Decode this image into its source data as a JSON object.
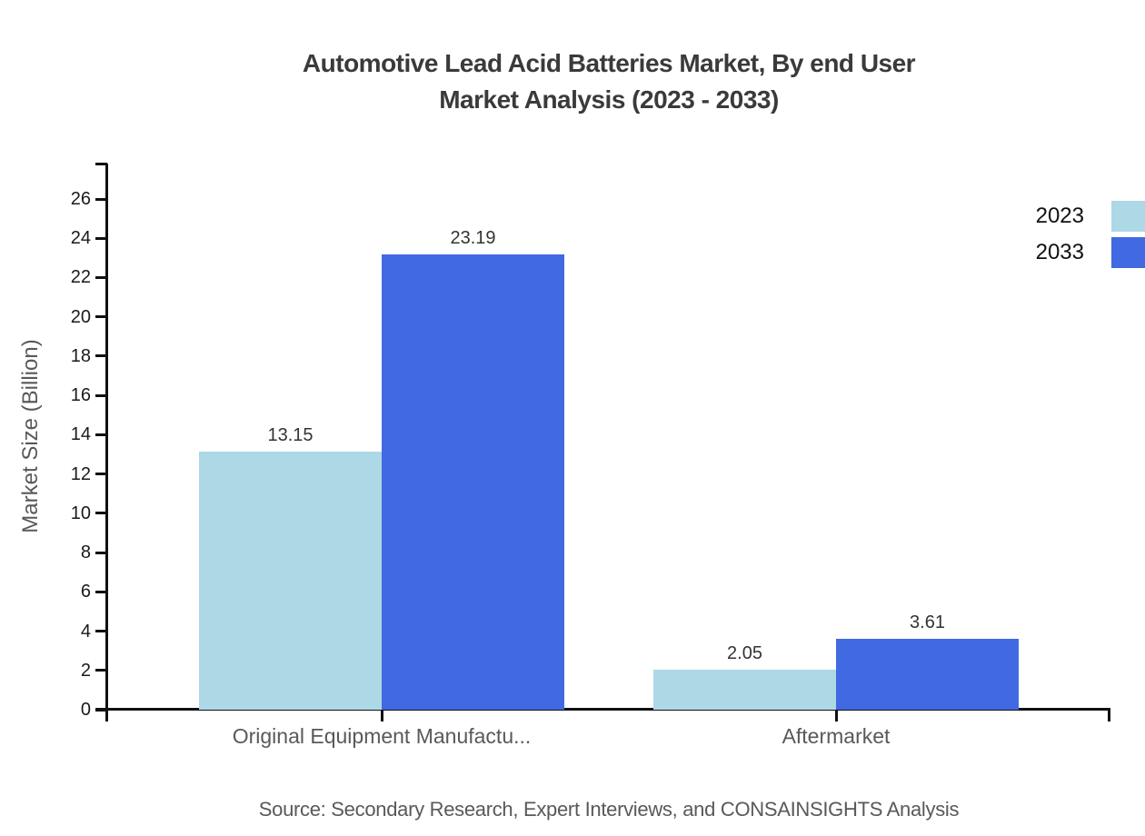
{
  "page": {
    "background": "#ffffff"
  },
  "title": {
    "line1": "Automotive Lead Acid Batteries Market, By end User",
    "line2": "Market Analysis (2023 - 2033)"
  },
  "legend": {
    "position": "top-right",
    "items": [
      {
        "label": "2023",
        "color": "#ADD8E6"
      },
      {
        "label": "2033",
        "color": "#4169E1"
      }
    ]
  },
  "chart_data": {
    "type": "bar",
    "title": "Automotive Lead Acid Batteries Market, By end User Market Analysis (2023 - 2033)",
    "categories": [
      "Original Equipment Manufactu...",
      "Aftermarket"
    ],
    "series": [
      {
        "name": "2023",
        "color": "#ADD8E6",
        "values": [
          13.15,
          2.05
        ]
      },
      {
        "name": "2033",
        "color": "#4169E1",
        "values": [
          23.19,
          3.61
        ]
      }
    ],
    "value_labels": [
      "13.15",
      "23.19",
      "2.05",
      "3.61"
    ],
    "xlabel": "",
    "ylabel": "Market Size (Billion)",
    "ylim": [
      0,
      26
    ],
    "yticks": [
      0,
      2,
      4,
      6,
      8,
      10,
      12,
      14,
      16,
      18,
      20,
      22,
      24,
      26
    ],
    "grid": false,
    "axis_color": "#111111",
    "legend_position": "top-right"
  },
  "footer": {
    "source": "Source: Secondary Research, Expert Interviews, and CONSAINSIGHTS Analysis"
  }
}
